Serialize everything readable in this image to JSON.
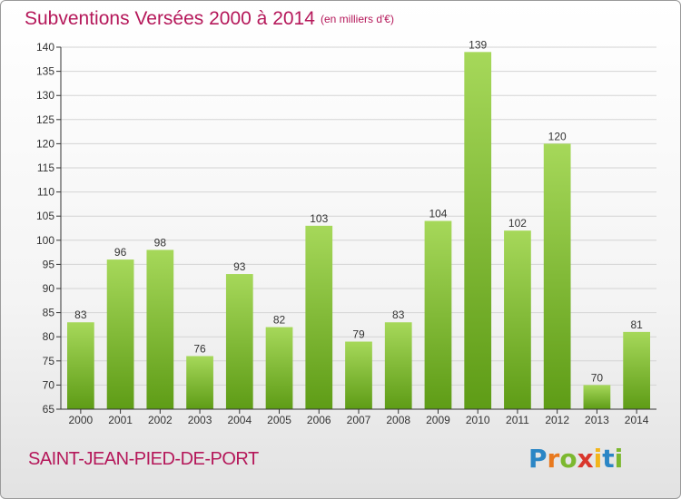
{
  "header": {
    "title": "Subventions Versées 2000 à 2014",
    "unit": "(en milliers d'€)"
  },
  "footer": {
    "place": "SAINT-JEAN-PIED-DE-PORT",
    "logo_letters": [
      "P",
      "r",
      "o",
      "x",
      "i",
      "t",
      "i"
    ],
    "logo_colors": [
      "#2b86c5",
      "#e8791e",
      "#7cb82f",
      "#d9362c",
      "#f2b51b",
      "#2b86c5",
      "#7cb82f"
    ]
  },
  "colors": {
    "bar_top": "#a6d85a",
    "bar_bottom": "#5e9c16",
    "title": "#b5185a",
    "axis": "#333333",
    "grid": "#d4d4d4"
  },
  "chart_data": {
    "type": "bar",
    "title": "Subventions Versées 2000 à 2014",
    "categories": [
      "2000",
      "2001",
      "2002",
      "2003",
      "2004",
      "2005",
      "2006",
      "2007",
      "2008",
      "2009",
      "2010",
      "2011",
      "2012",
      "2013",
      "2014"
    ],
    "values": [
      83,
      96,
      98,
      76,
      93,
      82,
      103,
      79,
      83,
      104,
      139,
      102,
      120,
      70,
      81
    ],
    "xlabel": "",
    "ylabel": "",
    "ylim": [
      65,
      140
    ],
    "yticks": [
      65,
      70,
      75,
      80,
      85,
      90,
      95,
      100,
      105,
      110,
      115,
      120,
      125,
      130,
      135,
      140
    ],
    "grid": true,
    "legend": "none"
  }
}
